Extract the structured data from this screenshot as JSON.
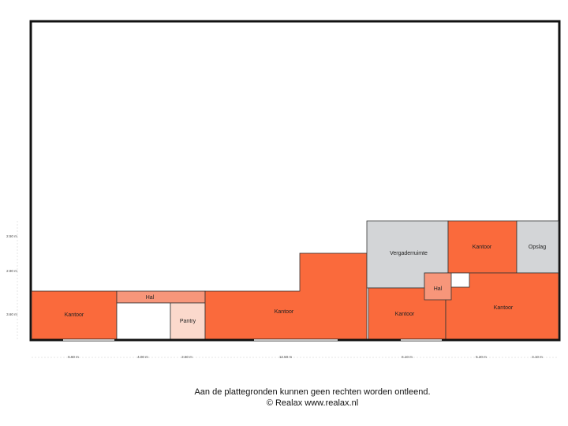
{
  "rooms": [
    {
      "label": "Kantoor"
    },
    {
      "label": "Hal"
    },
    {
      "label": "Pantry"
    },
    {
      "label": "Kantoor"
    },
    {
      "label": "Vergaderruimte"
    },
    {
      "label": "Kantoor"
    },
    {
      "label": "Opslag"
    },
    {
      "label": "Hal"
    },
    {
      "label": "Kantoor"
    },
    {
      "label": "Kantoor"
    }
  ],
  "dimensions": {
    "horizontal": [
      "6.60 m",
      "4.00 m",
      "2.60 m",
      "12.50 m",
      "6.10 m",
      "5.20 m",
      "3.10 m"
    ],
    "vertical": [
      "2.50 m",
      "2.90 m",
      "3.60 m"
    ]
  },
  "footer": {
    "disclaimer": "Aan de plattegronden kunnen geen rechten worden ontleend.",
    "credit": "© Realax www.realax.nl"
  }
}
